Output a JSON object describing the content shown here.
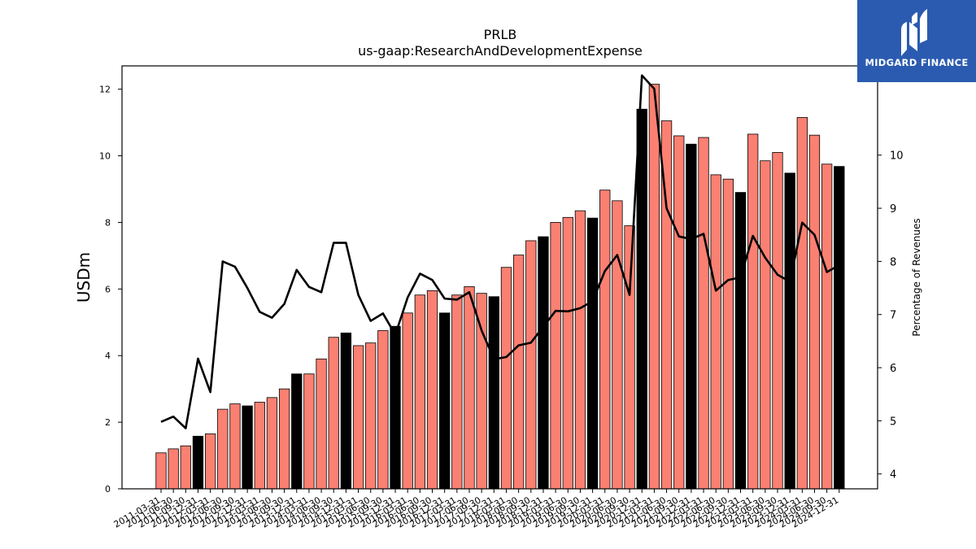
{
  "brand": {
    "name": "MIDGARD FINANCE"
  },
  "chart_data": {
    "type": "bar",
    "title": "PRLB",
    "subtitle": "us-gaap:ResearchAndDevelopmentExpense",
    "ylabel": "USDm",
    "y2label": "Percentage of Revenues",
    "ylim": [
      0,
      12.7
    ],
    "y2lim": [
      3.72,
      11.68
    ],
    "yticks": [
      0,
      2,
      4,
      6,
      8,
      10,
      12
    ],
    "y2ticks": [
      4,
      5,
      6,
      7,
      8,
      9,
      10
    ],
    "colors": {
      "quarter_bar": "#fa8072",
      "annual_bar": "#000000",
      "line": "#000000"
    },
    "categories": [
      "2011-03-31",
      "2011-06-30",
      "2011-09-30",
      "2011-12-31",
      "2012-03-31",
      "2012-06-30",
      "2012-09-30",
      "2012-12-31",
      "2013-03-31",
      "2013-06-30",
      "2013-09-30",
      "2013-12-31",
      "2014-03-31",
      "2014-06-30",
      "2014-09-30",
      "2014-12-31",
      "2015-03-31",
      "2015-06-30",
      "2015-09-30",
      "2015-12-31",
      "2016-03-31",
      "2016-06-30",
      "2016-09-30",
      "2016-12-31",
      "2017-03-31",
      "2017-06-30",
      "2017-09-30",
      "2017-12-31",
      "2018-03-31",
      "2018-06-30",
      "2018-09-30",
      "2018-12-31",
      "2019-03-31",
      "2019-06-30",
      "2019-09-30",
      "2019-12-31",
      "2020-03-31",
      "2020-06-30",
      "2020-09-30",
      "2020-12-31",
      "2021-03-31",
      "2021-06-30",
      "2021-09-30",
      "2021-12-31",
      "2022-03-31",
      "2022-06-30",
      "2022-09-30",
      "2022-12-31",
      "2023-03-31",
      "2023-06-30",
      "2023-09-30",
      "2023-12-31",
      "2024-03-31",
      "2024-06-30",
      "2024-09-30",
      "2024-12-31"
    ],
    "series": [
      {
        "values": [
          1.08,
          1.2,
          1.29,
          1.58,
          1.65,
          2.39,
          2.55,
          2.49,
          2.6,
          2.74,
          3.0,
          3.45,
          3.45,
          3.9,
          4.55,
          4.68,
          4.3,
          4.38,
          4.75,
          4.88,
          5.28,
          5.82,
          5.95,
          5.28,
          5.82,
          6.07,
          5.87,
          5.77,
          6.65,
          7.02,
          7.45,
          7.57,
          8.0,
          8.15,
          8.35,
          8.13,
          8.97,
          8.65,
          7.9,
          11.4,
          12.15,
          11.05,
          10.6,
          10.35,
          10.55,
          9.43,
          9.3,
          8.9,
          10.65,
          9.85,
          10.1,
          9.48,
          11.15,
          10.62,
          9.75,
          9.68
        ],
        "annual": [
          false,
          false,
          false,
          true,
          false,
          false,
          false,
          true,
          false,
          false,
          false,
          true,
          false,
          false,
          false,
          true,
          false,
          false,
          false,
          true,
          false,
          false,
          false,
          true,
          false,
          false,
          false,
          true,
          false,
          false,
          false,
          true,
          false,
          false,
          false,
          true,
          false,
          false,
          false,
          true,
          false,
          false,
          false,
          true,
          false,
          false,
          false,
          true,
          false,
          false,
          false,
          true,
          false,
          false,
          false,
          true
        ]
      },
      {
        "values": [
          4.98,
          5.08,
          4.86,
          6.17,
          5.54,
          8.0,
          7.9,
          7.5,
          7.05,
          6.94,
          7.2,
          7.84,
          7.52,
          7.42,
          8.35,
          8.35,
          7.37,
          6.88,
          7.02,
          6.62,
          7.32,
          7.77,
          7.65,
          7.3,
          7.28,
          7.42,
          6.7,
          6.16,
          6.2,
          6.42,
          6.47,
          6.77,
          7.07,
          7.06,
          7.12,
          7.25,
          7.82,
          8.12,
          7.37,
          11.5,
          11.25,
          9.0,
          8.47,
          8.42,
          8.52,
          7.45,
          7.65,
          7.7,
          8.48,
          8.07,
          7.75,
          7.62,
          8.73,
          8.5,
          7.8,
          7.93
        ]
      }
    ]
  }
}
